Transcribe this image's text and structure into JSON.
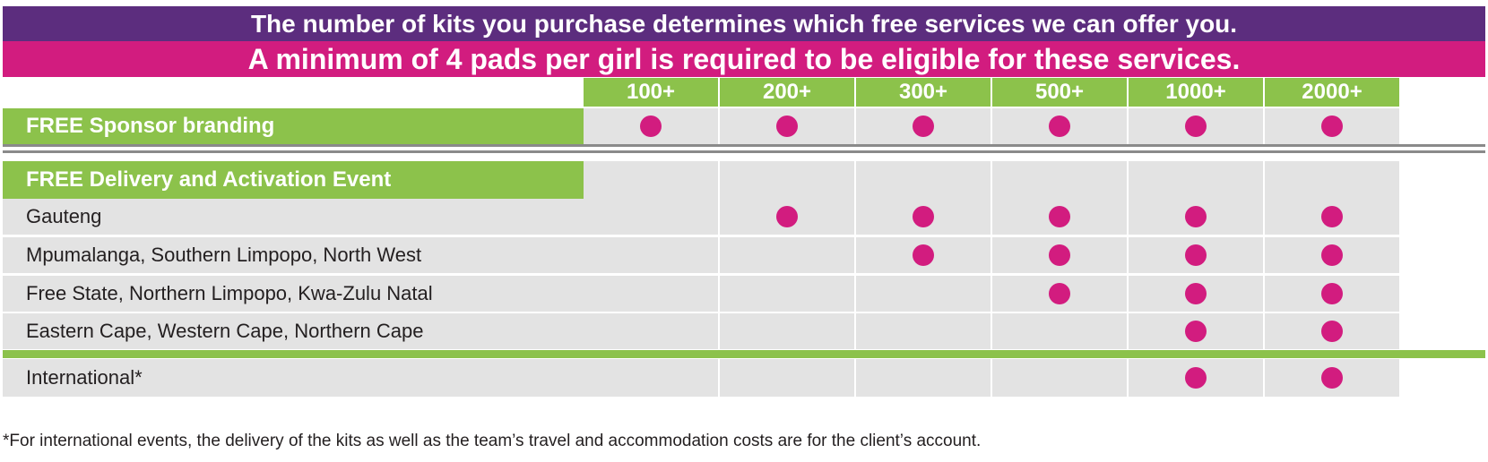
{
  "headline": "The number of kits you purchase determines which free services we can offer you.",
  "subheadline": "A minimum of 4 pads per girl is required to be eligible for these services.",
  "columns": [
    "100+",
    "200+",
    "300+",
    "500+",
    "1000+",
    "2000+"
  ],
  "sponsor_section": {
    "label": "FREE Sponsor branding",
    "marks": [
      true,
      true,
      true,
      true,
      true,
      true
    ]
  },
  "delivery_section": {
    "label": "FREE Delivery and Activation Event",
    "rows": [
      {
        "label": "Gauteng",
        "marks": [
          false,
          true,
          true,
          true,
          true,
          true
        ]
      },
      {
        "label": "Mpumalanga, Southern Limpopo, North West",
        "marks": [
          false,
          false,
          true,
          true,
          true,
          true
        ]
      },
      {
        "label": "Free State, Northern Limpopo, Kwa-Zulu Natal",
        "marks": [
          false,
          false,
          false,
          true,
          true,
          true
        ]
      },
      {
        "label": "Eastern Cape, Western Cape, Northern Cape",
        "marks": [
          false,
          false,
          false,
          false,
          true,
          true
        ]
      }
    ]
  },
  "international_row": {
    "label": "International*",
    "marks": [
      false,
      false,
      false,
      false,
      true,
      true
    ]
  },
  "footnote": "*For international events, the delivery of the kits as well as the team’s travel and accommodation costs are for the client’s account.",
  "colors": {
    "purple": "#5c2d7e",
    "pink": "#d21c7f",
    "green": "#8cc24b",
    "grey": "#e3e3e3"
  }
}
